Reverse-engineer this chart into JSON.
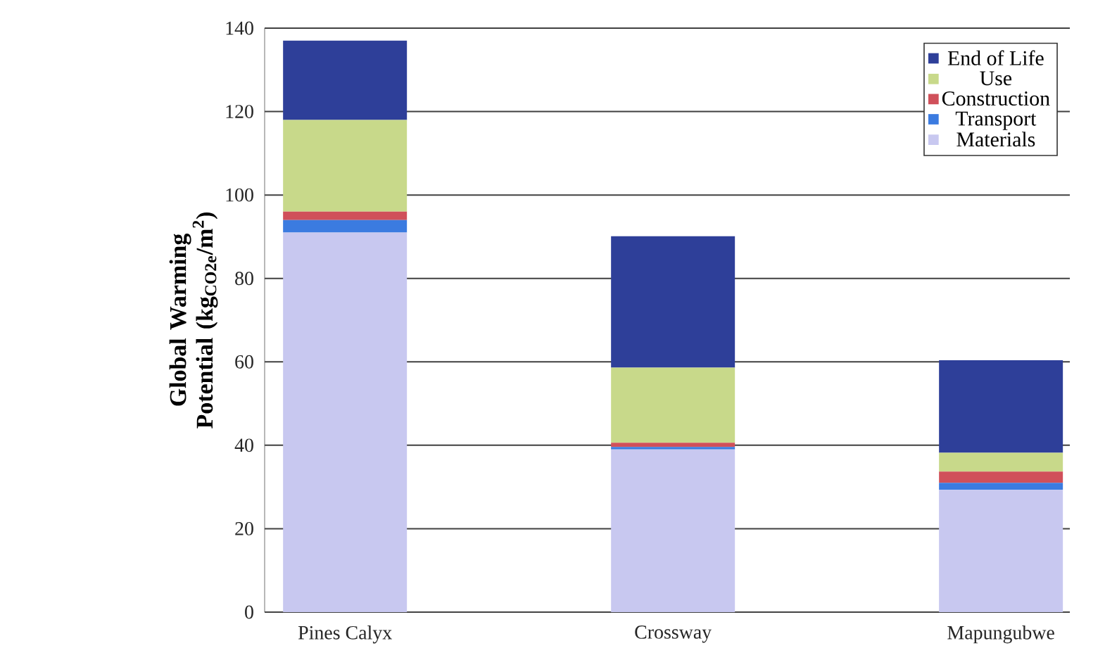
{
  "chart_data": {
    "type": "bar",
    "stacked": true,
    "ylabel": "Global Warming Potential (kg$_{CO2e}$/m$^{2}$)",
    "categories": [
      "Pines Calyx",
      "Crossway",
      "Mapungubwe"
    ],
    "series": [
      {
        "name": "Materials",
        "color": "#c8c8f0",
        "values": [
          91,
          39,
          29.3
        ]
      },
      {
        "name": "Transport",
        "color": "#3b7be0",
        "values": [
          3,
          0.6,
          1.7
        ]
      },
      {
        "name": "Construction",
        "color": "#d0505a",
        "values": [
          2,
          1,
          2.7
        ]
      },
      {
        "name": "Use",
        "color": "#c8d98a",
        "values": [
          22,
          18,
          4.5
        ]
      },
      {
        "name": "End of Life",
        "color": "#2e3f99",
        "values": [
          19,
          31.5,
          22.2
        ]
      }
    ],
    "ylim": [
      0,
      140
    ],
    "yticks": [
      0,
      20,
      40,
      60,
      80,
      100,
      120,
      140
    ],
    "grid": "y",
    "legend": "top right"
  }
}
